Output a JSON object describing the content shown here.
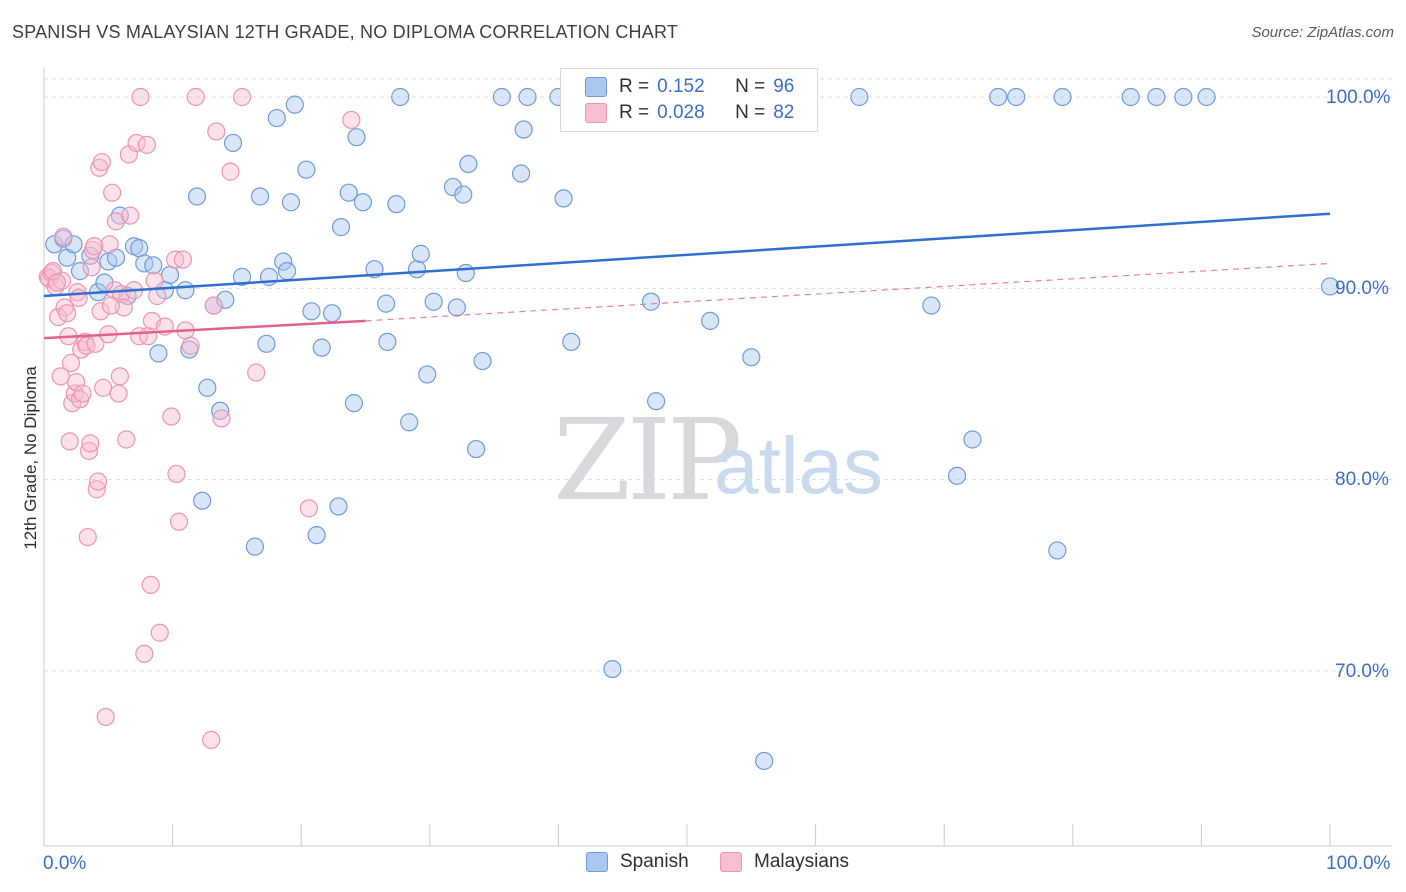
{
  "title": "SPANISH VS MALAYSIAN 12TH GRADE, NO DIPLOMA CORRELATION CHART",
  "source": "Source: ZipAtlas.com",
  "watermark": {
    "zip": "ZIP",
    "atlas": "atlas"
  },
  "legend": {
    "r_label": "R =",
    "n_label": "N =",
    "series": [
      {
        "name": "Spanish",
        "r": "0.152",
        "n": "96",
        "fill": "#aac7ef",
        "stroke": "#6f9bd8"
      },
      {
        "name": "Malaysians",
        "r": "0.028",
        "n": "82",
        "fill": "#f6bfd0",
        "stroke": "#ec94b0"
      }
    ]
  },
  "colors": {
    "blue_line": "#2f6fcf",
    "pink_line": "#e0628f",
    "tick_label": "#3b6fc4",
    "grid": "#dcdde2"
  },
  "chart_data": {
    "type": "scatter",
    "title": "SPANISH VS MALAYSIAN 12TH GRADE, NO DIPLOMA CORRELATION CHART",
    "xlabel": "",
    "ylabel": "12th Grade, No Diploma",
    "xlim": [
      0,
      100
    ],
    "ylim": [
      60.5,
      102
    ],
    "x_tick_labels": [
      "0.0%",
      "100.0%"
    ],
    "y_ticks": [
      100,
      90,
      80,
      70
    ],
    "y_tick_labels": [
      "100.0%",
      "90.0%",
      "80.0%",
      "70.0%"
    ],
    "grid": true,
    "series": [
      {
        "name": "Spanish",
        "trend": {
          "x": [
            0,
            100
          ],
          "y": [
            89.6,
            93.9
          ]
        },
        "points": [
          [
            0.8,
            92.3
          ],
          [
            1.5,
            92.6
          ],
          [
            1.8,
            91.6
          ],
          [
            2.3,
            92.3
          ],
          [
            2.8,
            90.9
          ],
          [
            3.6,
            91.7
          ],
          [
            4.2,
            89.8
          ],
          [
            4.7,
            90.3
          ],
          [
            5.0,
            91.4
          ],
          [
            5.6,
            91.6
          ],
          [
            5.9,
            93.8
          ],
          [
            6.5,
            89.6
          ],
          [
            7.0,
            92.2
          ],
          [
            7.4,
            92.1
          ],
          [
            7.8,
            91.3
          ],
          [
            8.5,
            91.2
          ],
          [
            8.9,
            86.6
          ],
          [
            9.4,
            89.9
          ],
          [
            9.8,
            90.7
          ],
          [
            11.0,
            89.9
          ],
          [
            11.3,
            86.8
          ],
          [
            11.9,
            94.8
          ],
          [
            12.3,
            78.9
          ],
          [
            12.7,
            84.8
          ],
          [
            13.2,
            89.1
          ],
          [
            13.7,
            83.6
          ],
          [
            14.1,
            89.4
          ],
          [
            14.7,
            97.6
          ],
          [
            15.4,
            90.6
          ],
          [
            16.4,
            76.5
          ],
          [
            16.8,
            94.8
          ],
          [
            17.3,
            87.1
          ],
          [
            17.5,
            90.6
          ],
          [
            18.1,
            98.9
          ],
          [
            18.6,
            91.4
          ],
          [
            18.9,
            90.9
          ],
          [
            19.2,
            94.5
          ],
          [
            19.5,
            99.6
          ],
          [
            20.4,
            96.2
          ],
          [
            20.8,
            88.8
          ],
          [
            21.2,
            77.1
          ],
          [
            21.6,
            86.9
          ],
          [
            22.4,
            88.7
          ],
          [
            22.9,
            78.6
          ],
          [
            23.1,
            93.2
          ],
          [
            24.1,
            84.0
          ],
          [
            24.3,
            97.9
          ],
          [
            24.8,
            94.5
          ],
          [
            25.7,
            91.0
          ],
          [
            26.6,
            89.2
          ],
          [
            26.7,
            87.2
          ],
          [
            27.4,
            94.4
          ],
          [
            27.7,
            100
          ],
          [
            28.4,
            83.0
          ],
          [
            29.0,
            91.0
          ],
          [
            29.3,
            91.8
          ],
          [
            29.8,
            85.5
          ],
          [
            30.3,
            89.3
          ],
          [
            31.8,
            95.3
          ],
          [
            32.1,
            89.0
          ],
          [
            32.6,
            94.9
          ],
          [
            32.8,
            90.8
          ],
          [
            33.6,
            81.6
          ],
          [
            34.1,
            86.2
          ],
          [
            35.6,
            100
          ],
          [
            37.1,
            96.0
          ],
          [
            37.6,
            100
          ],
          [
            40.0,
            100
          ],
          [
            40.4,
            94.7
          ],
          [
            41.0,
            87.2
          ],
          [
            42.2,
            100
          ],
          [
            44.2,
            70.1
          ],
          [
            44.7,
            100
          ],
          [
            47.2,
            89.3
          ],
          [
            47.6,
            84.1
          ],
          [
            51.8,
            88.3
          ],
          [
            52.4,
            100
          ],
          [
            55.0,
            86.4
          ],
          [
            56.0,
            65.3
          ],
          [
            56.6,
            100
          ],
          [
            63.4,
            100
          ],
          [
            69.0,
            89.1
          ],
          [
            71.0,
            80.2
          ],
          [
            72.2,
            82.1
          ],
          [
            74.2,
            100
          ],
          [
            75.6,
            100
          ],
          [
            78.8,
            76.3
          ],
          [
            79.2,
            100
          ],
          [
            84.5,
            100
          ],
          [
            86.5,
            100
          ],
          [
            88.6,
            100
          ],
          [
            90.4,
            100
          ],
          [
            100,
            90.1
          ],
          [
            37.3,
            98.3
          ],
          [
            33.0,
            96.5
          ],
          [
            23.7,
            95.0
          ]
        ]
      },
      {
        "name": "Malaysians",
        "trend": {
          "x": [
            0,
            25
          ],
          "y": [
            87.4,
            88.3
          ]
        },
        "trend_extended": {
          "x": [
            25,
            100
          ],
          "y": [
            88.3,
            91.3
          ]
        },
        "points": [
          [
            0.3,
            90.6
          ],
          [
            0.4,
            90.5
          ],
          [
            0.6,
            90.8
          ],
          [
            0.9,
            90.1
          ],
          [
            1.1,
            88.5
          ],
          [
            1.3,
            85.4
          ],
          [
            1.5,
            92.7
          ],
          [
            1.6,
            89.0
          ],
          [
            1.8,
            88.7
          ],
          [
            1.9,
            87.5
          ],
          [
            2.0,
            82.0
          ],
          [
            2.1,
            86.1
          ],
          [
            2.2,
            84.0
          ],
          [
            2.4,
            84.5
          ],
          [
            2.5,
            85.1
          ],
          [
            2.6,
            89.8
          ],
          [
            2.8,
            84.2
          ],
          [
            2.9,
            86.8
          ],
          [
            3.0,
            84.5
          ],
          [
            3.2,
            87.2
          ],
          [
            3.3,
            87.0
          ],
          [
            3.4,
            77.0
          ],
          [
            3.5,
            81.5
          ],
          [
            3.6,
            81.9
          ],
          [
            3.7,
            91.1
          ],
          [
            3.8,
            92.0
          ],
          [
            4.0,
            87.1
          ],
          [
            4.1,
            79.5
          ],
          [
            4.2,
            79.9
          ],
          [
            4.3,
            96.3
          ],
          [
            4.4,
            88.8
          ],
          [
            4.5,
            96.6
          ],
          [
            4.6,
            84.8
          ],
          [
            4.8,
            67.6
          ],
          [
            5.0,
            87.6
          ],
          [
            5.1,
            92.3
          ],
          [
            5.3,
            95.0
          ],
          [
            5.5,
            89.9
          ],
          [
            5.6,
            93.5
          ],
          [
            5.8,
            84.5
          ],
          [
            5.9,
            85.4
          ],
          [
            6.0,
            89.7
          ],
          [
            6.2,
            89.0
          ],
          [
            6.4,
            82.1
          ],
          [
            6.6,
            97.0
          ],
          [
            6.7,
            93.8
          ],
          [
            7.0,
            89.9
          ],
          [
            7.2,
            97.6
          ],
          [
            7.4,
            87.5
          ],
          [
            7.5,
            100
          ],
          [
            7.8,
            70.9
          ],
          [
            8.0,
            97.5
          ],
          [
            8.1,
            87.5
          ],
          [
            8.3,
            74.5
          ],
          [
            8.4,
            88.3
          ],
          [
            8.6,
            90.4
          ],
          [
            8.8,
            89.6
          ],
          [
            9.0,
            72.0
          ],
          [
            9.4,
            88.0
          ],
          [
            9.9,
            83.3
          ],
          [
            10.2,
            91.5
          ],
          [
            10.3,
            80.3
          ],
          [
            10.5,
            77.8
          ],
          [
            10.8,
            91.5
          ],
          [
            11.0,
            87.8
          ],
          [
            11.4,
            87.0
          ],
          [
            11.8,
            100
          ],
          [
            13.0,
            66.4
          ],
          [
            13.2,
            89.1
          ],
          [
            13.4,
            98.2
          ],
          [
            13.8,
            83.2
          ],
          [
            14.5,
            96.1
          ],
          [
            15.4,
            100
          ],
          [
            16.5,
            85.6
          ],
          [
            20.6,
            78.5
          ],
          [
            23.9,
            98.8
          ],
          [
            1.4,
            90.4
          ],
          [
            2.7,
            89.5
          ],
          [
            0.7,
            90.9
          ],
          [
            1.0,
            90.3
          ],
          [
            5.2,
            89.1
          ],
          [
            3.9,
            92.2
          ]
        ]
      }
    ]
  }
}
